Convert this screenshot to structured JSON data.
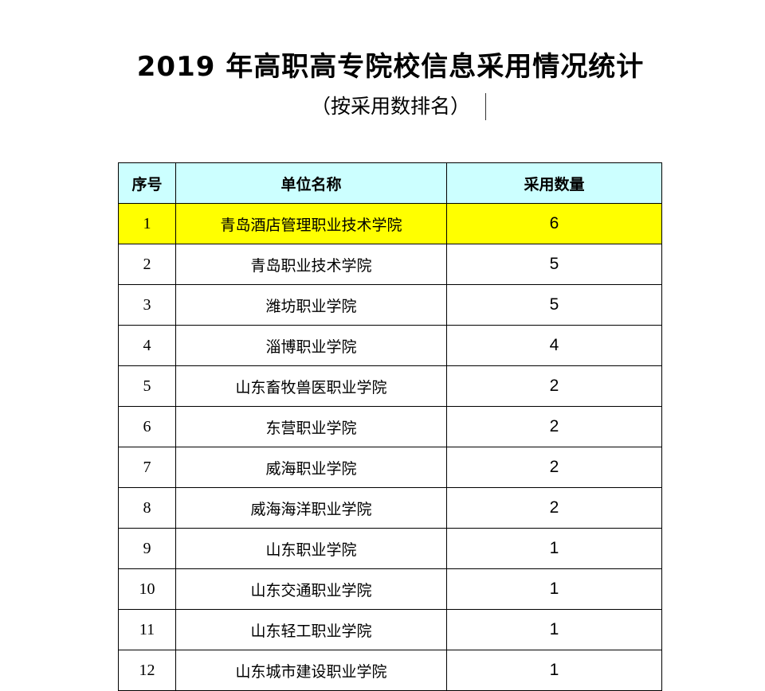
{
  "title": "2019 年高职高专院校信息采用情况统计",
  "subtitle": "（按采用数排名）",
  "highlight_color": "#ffff00",
  "header_color": "#ccffff",
  "table": {
    "headers": [
      "序号",
      "单位名称",
      "采用数量"
    ],
    "rows": [
      {
        "index": "1",
        "name": "青岛酒店管理职业技术学院",
        "count": "6"
      },
      {
        "index": "2",
        "name": "青岛职业技术学院",
        "count": "5"
      },
      {
        "index": "3",
        "name": "潍坊职业学院",
        "count": "5"
      },
      {
        "index": "4",
        "name": "淄博职业学院",
        "count": "4"
      },
      {
        "index": "5",
        "name": "山东畜牧兽医职业学院",
        "count": "2"
      },
      {
        "index": "6",
        "name": "东营职业学院",
        "count": "2"
      },
      {
        "index": "7",
        "name": "威海职业学院",
        "count": "2"
      },
      {
        "index": "8",
        "name": "威海海洋职业学院",
        "count": "2"
      },
      {
        "index": "9",
        "name": "山东职业学院",
        "count": "1"
      },
      {
        "index": "10",
        "name": "山东交通职业学院",
        "count": "1"
      },
      {
        "index": "11",
        "name": "山东轻工职业学院",
        "count": "1"
      },
      {
        "index": "12",
        "name": "山东城市建设职业学院",
        "count": "1"
      }
    ]
  }
}
